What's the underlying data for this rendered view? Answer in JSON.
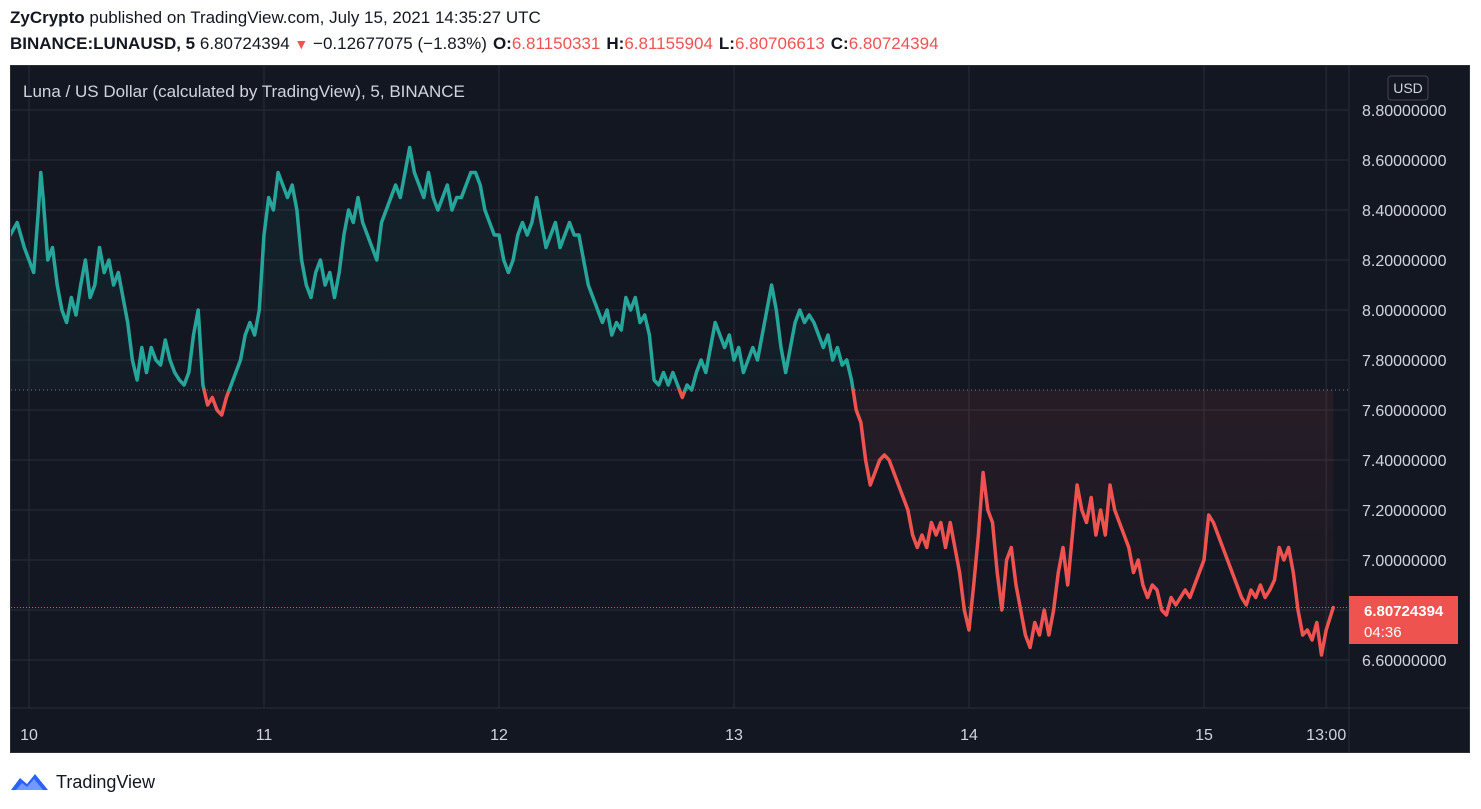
{
  "header": {
    "author": "ZyCrypto",
    "published_text": "published on TradingView.com, July 15, 2021 14:35:27 UTC",
    "symbol": "BINANCE:LUNAUSD, 5",
    "last_price": "6.80724394",
    "change": "−0.12677075 (−1.83%)",
    "open_label": "O:",
    "open_value": "6.81150331",
    "high_label": "H:",
    "high_value": "6.81155904",
    "low_label": "L:",
    "low_value": "6.80706613",
    "close_label": "C:",
    "close_value": "6.80724394"
  },
  "footer": {
    "brand": "TradingView",
    "logo_icon": "tradingview-logo-icon"
  },
  "chart_data": {
    "type": "line",
    "title": "Luna / US Dollar (calculated by TradingView), 5, BINANCE",
    "currency_label": "USD",
    "x_ticks": [
      "10",
      "11",
      "12",
      "13",
      "14",
      "15",
      "13:00"
    ],
    "y_ticks": [
      "8.80000000",
      "8.60000000",
      "8.40000000",
      "8.20000000",
      "8.00000000",
      "7.80000000",
      "7.60000000",
      "7.40000000",
      "7.20000000",
      "7.00000000",
      "6.80000000",
      "6.60000000"
    ],
    "ylim": [
      6.5,
      8.9
    ],
    "baseline": 7.68,
    "last_price_label": "6.80724394",
    "countdown": "04:36",
    "colors": {
      "up": "#26a69a",
      "down": "#ef5350",
      "background": "#131722",
      "grid": "#2a2e39",
      "axis_text": "#d1d4dc"
    },
    "series": [
      {
        "x_unit": "day of July 2021",
        "points": [
          [
            9.92,
            8.3
          ],
          [
            9.95,
            8.35
          ],
          [
            9.98,
            8.25
          ],
          [
            10.0,
            8.2
          ],
          [
            10.02,
            8.15
          ],
          [
            10.04,
            8.4
          ],
          [
            10.05,
            8.55
          ],
          [
            10.06,
            8.45
          ],
          [
            10.08,
            8.2
          ],
          [
            10.1,
            8.25
          ],
          [
            10.12,
            8.1
          ],
          [
            10.14,
            8.0
          ],
          [
            10.16,
            7.95
          ],
          [
            10.18,
            8.05
          ],
          [
            10.2,
            7.98
          ],
          [
            10.22,
            8.1
          ],
          [
            10.24,
            8.2
          ],
          [
            10.26,
            8.05
          ],
          [
            10.28,
            8.1
          ],
          [
            10.3,
            8.25
          ],
          [
            10.32,
            8.15
          ],
          [
            10.34,
            8.2
          ],
          [
            10.36,
            8.1
          ],
          [
            10.38,
            8.15
          ],
          [
            10.4,
            8.05
          ],
          [
            10.42,
            7.95
          ],
          [
            10.44,
            7.8
          ],
          [
            10.46,
            7.72
          ],
          [
            10.48,
            7.85
          ],
          [
            10.5,
            7.75
          ],
          [
            10.52,
            7.85
          ],
          [
            10.54,
            7.8
          ],
          [
            10.56,
            7.78
          ],
          [
            10.58,
            7.88
          ],
          [
            10.6,
            7.8
          ],
          [
            10.62,
            7.75
          ],
          [
            10.64,
            7.72
          ],
          [
            10.66,
            7.7
          ],
          [
            10.68,
            7.75
          ],
          [
            10.7,
            7.9
          ],
          [
            10.72,
            8.0
          ],
          [
            10.74,
            7.7
          ],
          [
            10.76,
            7.62
          ],
          [
            10.78,
            7.65
          ],
          [
            10.8,
            7.6
          ],
          [
            10.82,
            7.58
          ],
          [
            10.84,
            7.65
          ],
          [
            10.86,
            7.7
          ],
          [
            10.88,
            7.75
          ],
          [
            10.9,
            7.8
          ],
          [
            10.92,
            7.9
          ],
          [
            10.94,
            7.95
          ],
          [
            10.96,
            7.9
          ],
          [
            10.98,
            8.0
          ],
          [
            11.0,
            8.3
          ],
          [
            11.02,
            8.45
          ],
          [
            11.04,
            8.4
          ],
          [
            11.06,
            8.55
          ],
          [
            11.08,
            8.5
          ],
          [
            11.1,
            8.45
          ],
          [
            11.12,
            8.5
          ],
          [
            11.14,
            8.4
          ],
          [
            11.16,
            8.2
          ],
          [
            11.18,
            8.1
          ],
          [
            11.2,
            8.05
          ],
          [
            11.22,
            8.15
          ],
          [
            11.24,
            8.2
          ],
          [
            11.26,
            8.1
          ],
          [
            11.28,
            8.15
          ],
          [
            11.3,
            8.05
          ],
          [
            11.32,
            8.15
          ],
          [
            11.34,
            8.3
          ],
          [
            11.36,
            8.4
          ],
          [
            11.38,
            8.35
          ],
          [
            11.4,
            8.45
          ],
          [
            11.42,
            8.35
          ],
          [
            11.44,
            8.3
          ],
          [
            11.46,
            8.25
          ],
          [
            11.48,
            8.2
          ],
          [
            11.5,
            8.35
          ],
          [
            11.52,
            8.4
          ],
          [
            11.54,
            8.45
          ],
          [
            11.56,
            8.5
          ],
          [
            11.58,
            8.45
          ],
          [
            11.6,
            8.55
          ],
          [
            11.62,
            8.65
          ],
          [
            11.64,
            8.55
          ],
          [
            11.66,
            8.5
          ],
          [
            11.68,
            8.45
          ],
          [
            11.7,
            8.55
          ],
          [
            11.72,
            8.45
          ],
          [
            11.74,
            8.4
          ],
          [
            11.76,
            8.45
          ],
          [
            11.78,
            8.5
          ],
          [
            11.8,
            8.4
          ],
          [
            11.82,
            8.45
          ],
          [
            11.84,
            8.45
          ],
          [
            11.86,
            8.5
          ],
          [
            11.88,
            8.55
          ],
          [
            11.9,
            8.55
          ],
          [
            11.92,
            8.5
          ],
          [
            11.94,
            8.4
          ],
          [
            11.96,
            8.35
          ],
          [
            11.98,
            8.3
          ],
          [
            12.0,
            8.3
          ],
          [
            12.02,
            8.2
          ],
          [
            12.04,
            8.15
          ],
          [
            12.06,
            8.2
          ],
          [
            12.08,
            8.3
          ],
          [
            12.1,
            8.35
          ],
          [
            12.12,
            8.3
          ],
          [
            12.14,
            8.35
          ],
          [
            12.16,
            8.45
          ],
          [
            12.18,
            8.35
          ],
          [
            12.2,
            8.25
          ],
          [
            12.22,
            8.3
          ],
          [
            12.24,
            8.35
          ],
          [
            12.26,
            8.25
          ],
          [
            12.28,
            8.3
          ],
          [
            12.3,
            8.35
          ],
          [
            12.32,
            8.3
          ],
          [
            12.34,
            8.3
          ],
          [
            12.36,
            8.2
          ],
          [
            12.38,
            8.1
          ],
          [
            12.4,
            8.05
          ],
          [
            12.42,
            8.0
          ],
          [
            12.44,
            7.95
          ],
          [
            12.46,
            8.0
          ],
          [
            12.48,
            7.9
          ],
          [
            12.5,
            7.95
          ],
          [
            12.52,
            7.92
          ],
          [
            12.54,
            8.05
          ],
          [
            12.56,
            8.0
          ],
          [
            12.58,
            8.05
          ],
          [
            12.6,
            7.95
          ],
          [
            12.62,
            7.98
          ],
          [
            12.64,
            7.9
          ],
          [
            12.66,
            7.72
          ],
          [
            12.68,
            7.7
          ],
          [
            12.7,
            7.75
          ],
          [
            12.72,
            7.7
          ],
          [
            12.74,
            7.75
          ],
          [
            12.76,
            7.7
          ],
          [
            12.78,
            7.65
          ],
          [
            12.8,
            7.7
          ],
          [
            12.82,
            7.68
          ],
          [
            12.84,
            7.75
          ],
          [
            12.86,
            7.8
          ],
          [
            12.88,
            7.75
          ],
          [
            12.9,
            7.85
          ],
          [
            12.92,
            7.95
          ],
          [
            12.94,
            7.9
          ],
          [
            12.96,
            7.85
          ],
          [
            12.98,
            7.9
          ],
          [
            13.0,
            7.8
          ],
          [
            13.02,
            7.85
          ],
          [
            13.04,
            7.75
          ],
          [
            13.06,
            7.8
          ],
          [
            13.08,
            7.85
          ],
          [
            13.1,
            7.8
          ],
          [
            13.12,
            7.9
          ],
          [
            13.14,
            8.0
          ],
          [
            13.16,
            8.1
          ],
          [
            13.18,
            8.0
          ],
          [
            13.2,
            7.85
          ],
          [
            13.22,
            7.75
          ],
          [
            13.24,
            7.85
          ],
          [
            13.26,
            7.95
          ],
          [
            13.28,
            8.0
          ],
          [
            13.3,
            7.95
          ],
          [
            13.32,
            7.98
          ],
          [
            13.34,
            7.95
          ],
          [
            13.36,
            7.9
          ],
          [
            13.38,
            7.85
          ],
          [
            13.4,
            7.9
          ],
          [
            13.42,
            7.8
          ],
          [
            13.44,
            7.85
          ],
          [
            13.46,
            7.78
          ],
          [
            13.48,
            7.8
          ],
          [
            13.5,
            7.72
          ],
          [
            13.52,
            7.6
          ],
          [
            13.54,
            7.55
          ],
          [
            13.56,
            7.4
          ],
          [
            13.58,
            7.3
          ],
          [
            13.6,
            7.35
          ],
          [
            13.62,
            7.4
          ],
          [
            13.64,
            7.42
          ],
          [
            13.66,
            7.4
          ],
          [
            13.68,
            7.35
          ],
          [
            13.7,
            7.3
          ],
          [
            13.72,
            7.25
          ],
          [
            13.74,
            7.2
          ],
          [
            13.76,
            7.1
          ],
          [
            13.78,
            7.05
          ],
          [
            13.8,
            7.1
          ],
          [
            13.82,
            7.05
          ],
          [
            13.84,
            7.15
          ],
          [
            13.86,
            7.1
          ],
          [
            13.88,
            7.15
          ],
          [
            13.9,
            7.05
          ],
          [
            13.92,
            7.15
          ],
          [
            13.94,
            7.05
          ],
          [
            13.96,
            6.95
          ],
          [
            13.98,
            6.8
          ],
          [
            14.0,
            6.72
          ],
          [
            14.02,
            6.9
          ],
          [
            14.04,
            7.1
          ],
          [
            14.06,
            7.35
          ],
          [
            14.08,
            7.2
          ],
          [
            14.1,
            7.15
          ],
          [
            14.12,
            6.95
          ],
          [
            14.14,
            6.8
          ],
          [
            14.16,
            7.0
          ],
          [
            14.18,
            7.05
          ],
          [
            14.2,
            6.9
          ],
          [
            14.22,
            6.8
          ],
          [
            14.24,
            6.7
          ],
          [
            14.26,
            6.65
          ],
          [
            14.28,
            6.75
          ],
          [
            14.3,
            6.7
          ],
          [
            14.32,
            6.8
          ],
          [
            14.34,
            6.7
          ],
          [
            14.36,
            6.8
          ],
          [
            14.38,
            6.95
          ],
          [
            14.4,
            7.05
          ],
          [
            14.42,
            6.9
          ],
          [
            14.44,
            7.1
          ],
          [
            14.46,
            7.3
          ],
          [
            14.48,
            7.2
          ],
          [
            14.5,
            7.15
          ],
          [
            14.52,
            7.25
          ],
          [
            14.54,
            7.1
          ],
          [
            14.56,
            7.2
          ],
          [
            14.58,
            7.1
          ],
          [
            14.6,
            7.3
          ],
          [
            14.62,
            7.2
          ],
          [
            14.64,
            7.15
          ],
          [
            14.66,
            7.1
          ],
          [
            14.68,
            7.05
          ],
          [
            14.7,
            6.95
          ],
          [
            14.72,
            7.0
          ],
          [
            14.74,
            6.9
          ],
          [
            14.76,
            6.85
          ],
          [
            14.78,
            6.9
          ],
          [
            14.8,
            6.88
          ],
          [
            14.82,
            6.8
          ],
          [
            14.84,
            6.78
          ],
          [
            14.86,
            6.85
          ],
          [
            14.88,
            6.82
          ],
          [
            14.9,
            6.85
          ],
          [
            14.92,
            6.88
          ],
          [
            14.94,
            6.85
          ],
          [
            14.96,
            6.9
          ],
          [
            14.98,
            6.95
          ],
          [
            15.0,
            7.0
          ],
          [
            15.02,
            7.18
          ],
          [
            15.04,
            7.15
          ],
          [
            15.06,
            7.1
          ],
          [
            15.08,
            7.05
          ],
          [
            15.1,
            7.0
          ],
          [
            15.12,
            6.95
          ],
          [
            15.14,
            6.9
          ],
          [
            15.16,
            6.85
          ],
          [
            15.18,
            6.82
          ],
          [
            15.2,
            6.88
          ],
          [
            15.22,
            6.85
          ],
          [
            15.24,
            6.9
          ],
          [
            15.26,
            6.85
          ],
          [
            15.28,
            6.88
          ],
          [
            15.3,
            6.92
          ],
          [
            15.32,
            7.05
          ],
          [
            15.34,
            7.0
          ],
          [
            15.36,
            7.05
          ],
          [
            15.38,
            6.95
          ],
          [
            15.4,
            6.8
          ],
          [
            15.42,
            6.7
          ],
          [
            15.44,
            6.72
          ],
          [
            15.46,
            6.68
          ],
          [
            15.48,
            6.75
          ],
          [
            15.5,
            6.62
          ],
          [
            15.52,
            6.72
          ],
          [
            15.54,
            6.78
          ],
          [
            15.55,
            6.81
          ]
        ]
      }
    ]
  }
}
